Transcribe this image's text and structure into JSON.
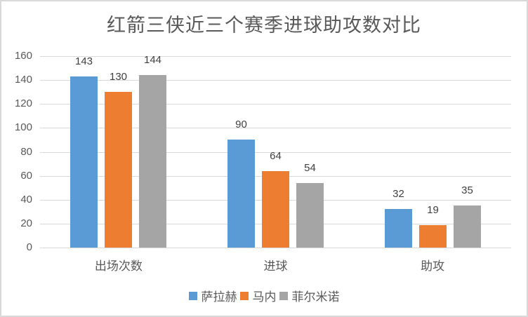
{
  "chart_data": {
    "type": "bar",
    "title": "红箭三侠近三个赛季进球助攻数对比",
    "categories": [
      "出场次数",
      "进球",
      "助攻"
    ],
    "series": [
      {
        "name": "萨拉赫",
        "color": "#5B9BD5",
        "values": [
          143,
          90,
          32
        ]
      },
      {
        "name": "马内",
        "color": "#ED7D31",
        "values": [
          130,
          64,
          19
        ]
      },
      {
        "name": "菲尔米诺",
        "color": "#A5A5A5",
        "values": [
          144,
          54,
          35
        ]
      }
    ],
    "xlabel": "",
    "ylabel": "",
    "ylim": [
      0,
      160
    ],
    "yticks": [
      0,
      20,
      40,
      60,
      80,
      100,
      120,
      140,
      160
    ],
    "grid": true,
    "legend_position": "bottom",
    "data_labels": true
  }
}
